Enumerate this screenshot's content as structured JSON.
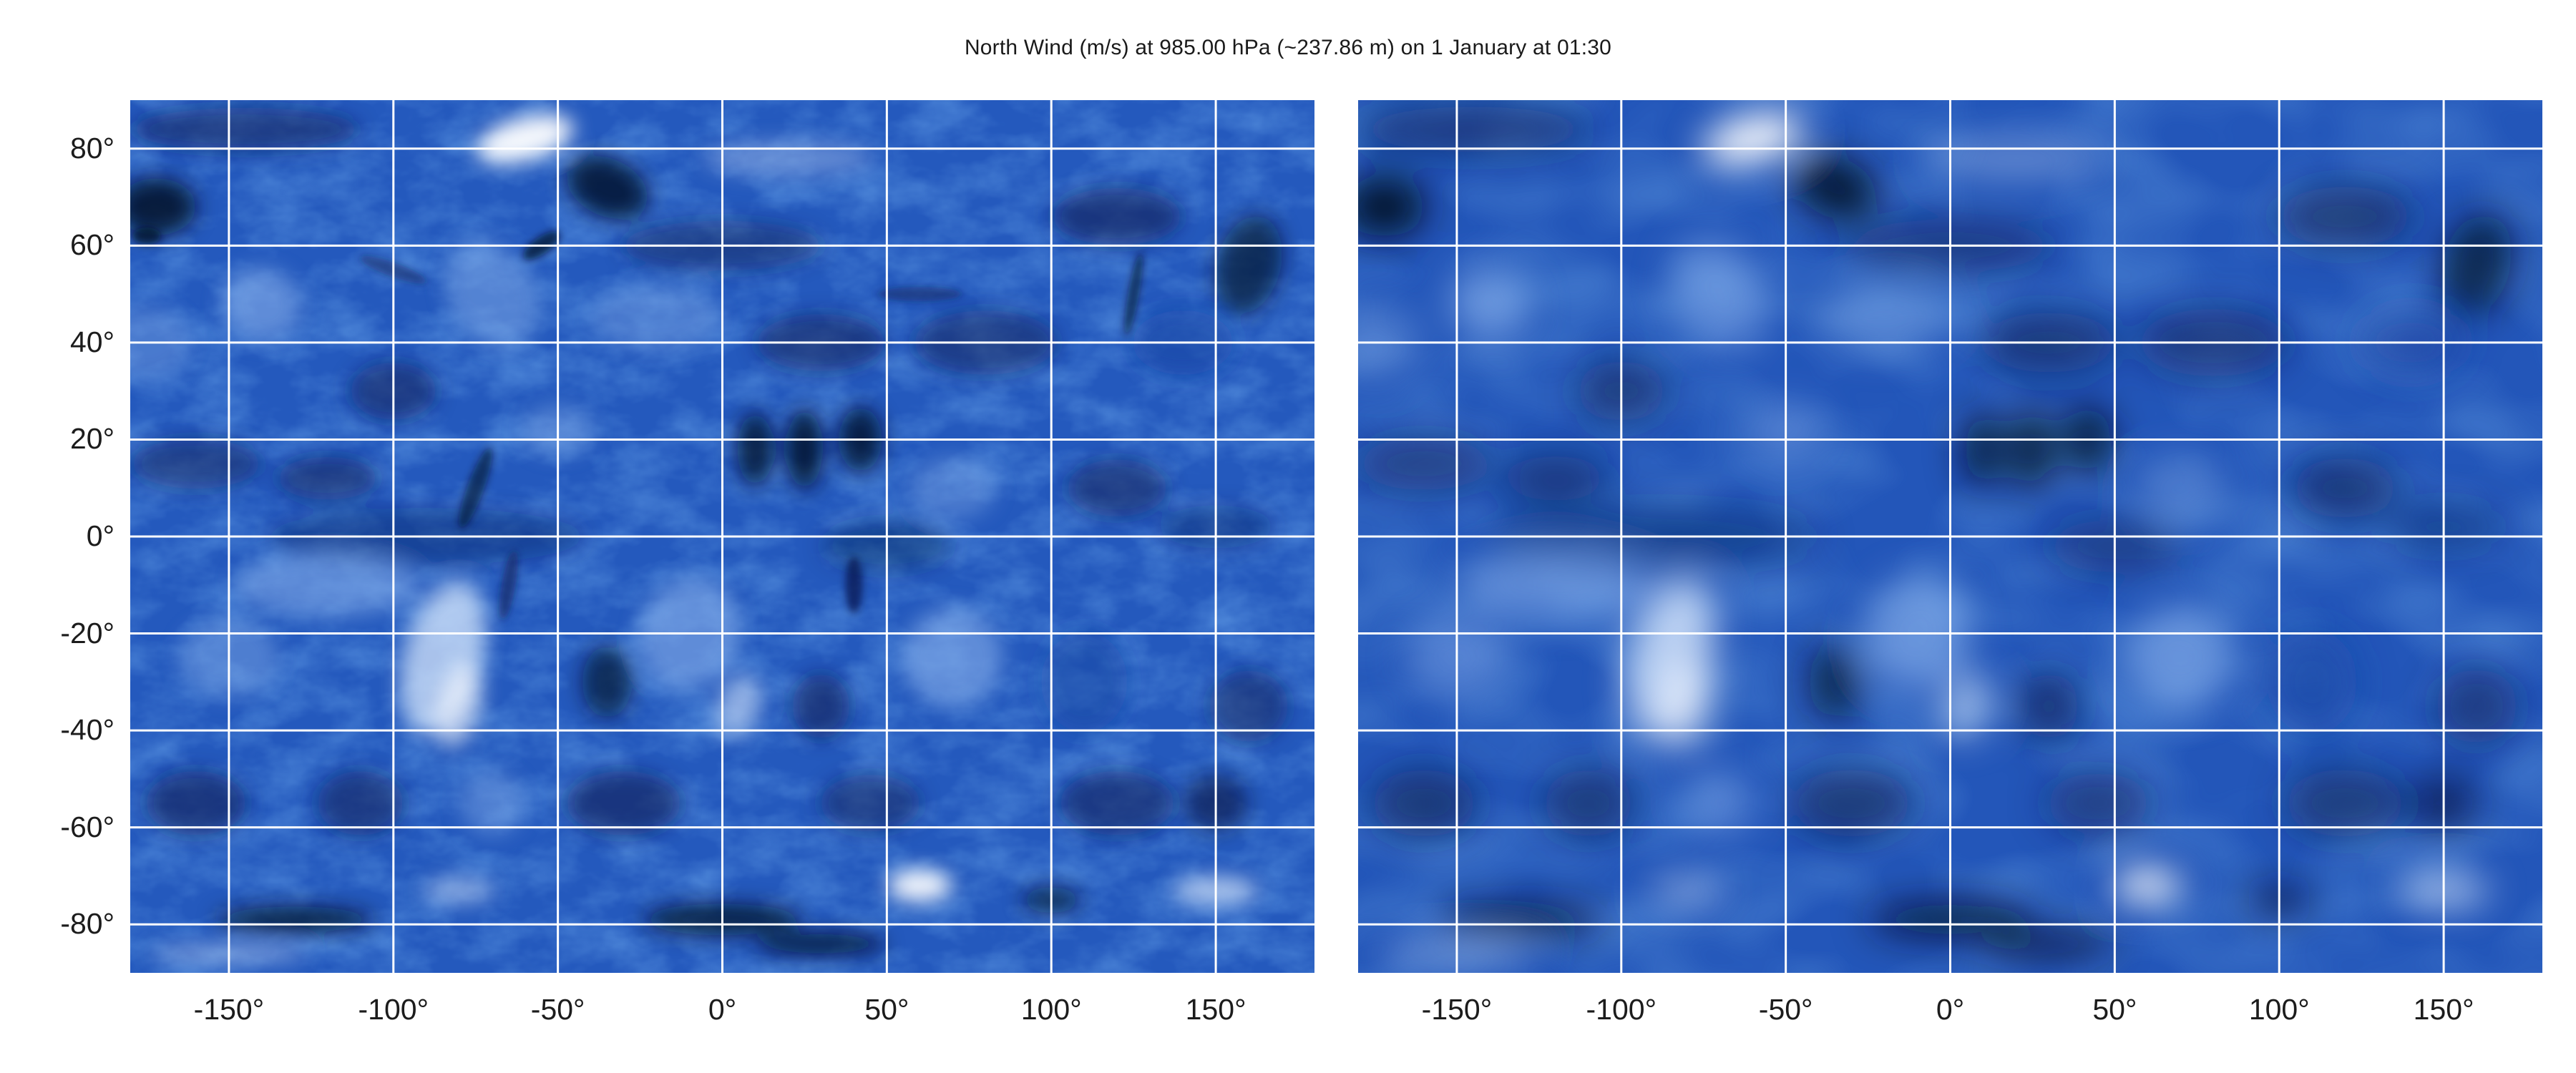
{
  "title": "North Wind (m/s) at 985.00 hPa (~237.86 m) on 1 January at 01:30",
  "colormap": [
    "#000000",
    "#0d1e4a",
    "#1a3d8f",
    "#2563c9",
    "#5a8fe0",
    "#a9c8f0",
    "#ffffff"
  ],
  "gridline_color": "#ffffff",
  "panels": [
    {
      "name": "left",
      "resolution": "fine",
      "xticks": [
        "-150°",
        "-100°",
        "-50°",
        "0°",
        "50°",
        "100°",
        "150°"
      ],
      "yticks": [
        "80°",
        "60°",
        "40°",
        "20°",
        "0°",
        "-20°",
        "-40°",
        "-60°",
        "-80°"
      ]
    },
    {
      "name": "right",
      "resolution": "coarse",
      "xticks": [
        "-150°",
        "-100°",
        "-50°",
        "0°",
        "50°",
        "100°",
        "150°"
      ],
      "yticks": []
    }
  ],
  "chart_data": {
    "type": "heatmap",
    "title": "North Wind (m/s) at 985.00 hPa (~237.86 m) on 1 January at 01:30",
    "xlabel": "",
    "ylabel": "",
    "xlim": [
      -180,
      180
    ],
    "ylim": [
      -90,
      90
    ],
    "x_ticks": [
      -150,
      -100,
      -50,
      0,
      50,
      100,
      150
    ],
    "y_ticks": [
      80,
      60,
      40,
      20,
      0,
      -20,
      -40,
      -60,
      -80
    ],
    "grid": true,
    "projection": "equirectangular",
    "panels": 2
  }
}
